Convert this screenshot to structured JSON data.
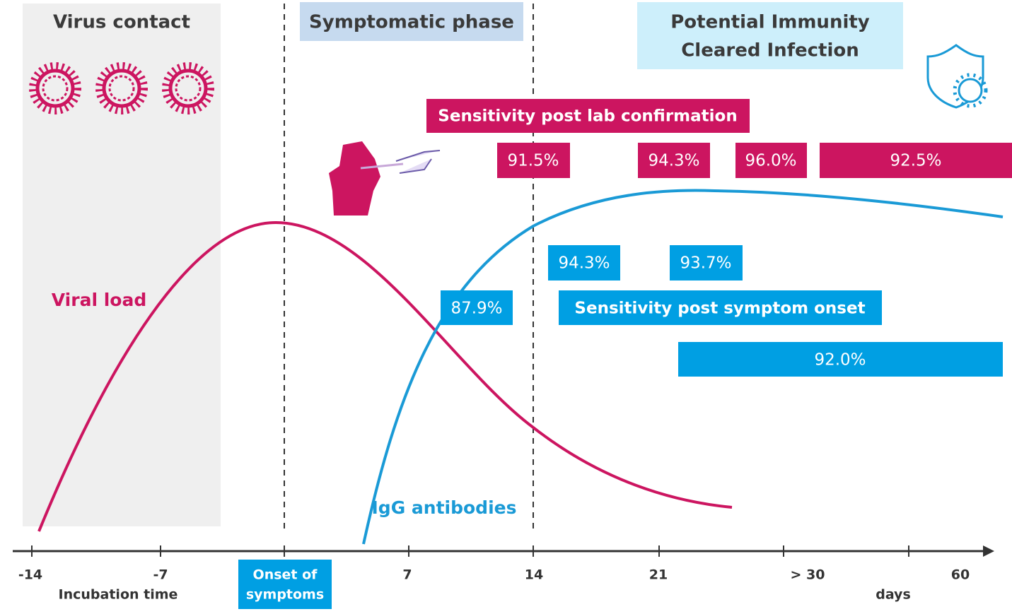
{
  "phases": [
    "Virus contact",
    "Symptomatic phase",
    [
      "Potential Immunity",
      "Cleared Infection"
    ]
  ],
  "lab_confirmation": {
    "title": "Sensitivity post lab confirmation",
    "values": [
      "91.5%",
      "94.3%",
      "96.0%",
      "92.5%"
    ]
  },
  "symptom_onset": {
    "title": "Sensitivity post symptom onset",
    "values": [
      "87.9%",
      "94.3%",
      "93.7%",
      "92.0%"
    ]
  },
  "curves": {
    "viral_load": "Viral load",
    "igg": "IgG antibodies"
  },
  "axis": {
    "ticks": [
      "-14",
      "-7",
      "7",
      "14",
      "21",
      "> 30",
      "60"
    ],
    "incubation": "Incubation time",
    "unit": "days",
    "onset": [
      "Onset of",
      "symptoms"
    ]
  }
}
